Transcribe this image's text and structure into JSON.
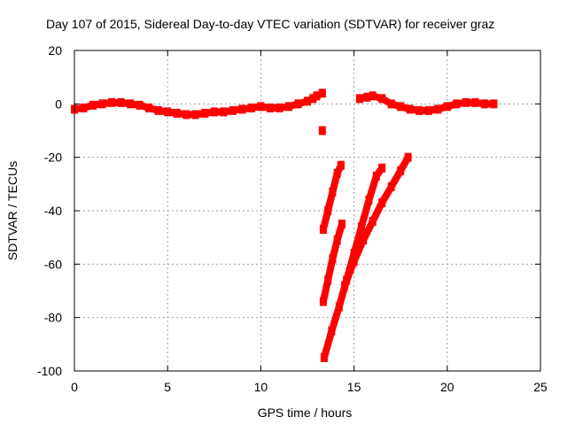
{
  "chart_data": {
    "type": "scatter",
    "title": "Day 107 of 2015, Sidereal Day-to-day VTEC variation (SDTVAR) for receiver graz",
    "xlabel": "GPS time / hours",
    "ylabel": "SDTVAR / TECUs",
    "xlim": [
      0,
      25
    ],
    "ylim": [
      -100,
      20
    ],
    "xticks": [
      0,
      5,
      10,
      15,
      20,
      25
    ],
    "yticks": [
      -100,
      -80,
      -60,
      -40,
      -20,
      0,
      20
    ],
    "grid": true,
    "marker_color": "#ff0000",
    "series": [
      {
        "name": "main-trace-1",
        "points": [
          [
            0.0,
            -2
          ],
          [
            0.5,
            -1.5
          ],
          [
            1.0,
            -0.5
          ],
          [
            1.5,
            0
          ],
          [
            2.0,
            0.5
          ],
          [
            2.5,
            0.5
          ],
          [
            3.0,
            0
          ],
          [
            3.5,
            -0.5
          ],
          [
            4.0,
            -1.5
          ],
          [
            4.5,
            -2.5
          ],
          [
            5.0,
            -3
          ],
          [
            5.5,
            -3.5
          ],
          [
            6.0,
            -4
          ],
          [
            6.5,
            -4
          ],
          [
            7.0,
            -3.5
          ],
          [
            7.5,
            -3
          ],
          [
            8.0,
            -3
          ],
          [
            8.5,
            -2.5
          ],
          [
            9.0,
            -2
          ],
          [
            9.5,
            -1.5
          ],
          [
            10.0,
            -1
          ],
          [
            10.5,
            -1.5
          ],
          [
            11.0,
            -1.5
          ],
          [
            11.5,
            -1
          ],
          [
            12.0,
            0
          ],
          [
            12.5,
            1
          ],
          [
            12.8,
            2
          ],
          [
            13.0,
            3
          ],
          [
            13.3,
            4
          ]
        ]
      },
      {
        "name": "main-trace-2",
        "points": [
          [
            15.3,
            2
          ],
          [
            15.7,
            2.5
          ],
          [
            16.0,
            3
          ],
          [
            16.5,
            2
          ],
          [
            17.0,
            0
          ],
          [
            17.5,
            -1
          ],
          [
            18.0,
            -2
          ],
          [
            18.5,
            -2.5
          ],
          [
            19.0,
            -2.5
          ],
          [
            19.5,
            -2
          ],
          [
            20.0,
            -1
          ],
          [
            20.5,
            0
          ],
          [
            21.0,
            0.5
          ],
          [
            21.5,
            0.5
          ],
          [
            22.0,
            0
          ],
          [
            22.5,
            0
          ]
        ]
      },
      {
        "name": "dip-point",
        "points": [
          [
            13.3,
            -10
          ]
        ]
      },
      {
        "name": "steep-line-1",
        "points": [
          [
            13.35,
            -47
          ],
          [
            13.6,
            -40
          ],
          [
            13.85,
            -33
          ],
          [
            14.1,
            -26
          ],
          [
            14.3,
            -23
          ]
        ]
      },
      {
        "name": "steep-line-2",
        "points": [
          [
            13.35,
            -74
          ],
          [
            13.6,
            -66
          ],
          [
            13.85,
            -58
          ],
          [
            14.1,
            -51
          ],
          [
            14.35,
            -45
          ]
        ]
      },
      {
        "name": "steep-line-3",
        "points": [
          [
            13.4,
            -95
          ],
          [
            13.8,
            -85
          ],
          [
            14.2,
            -76
          ],
          [
            14.6,
            -66
          ],
          [
            15.0,
            -56
          ],
          [
            15.4,
            -46
          ],
          [
            15.8,
            -36
          ],
          [
            16.2,
            -27
          ],
          [
            16.5,
            -24
          ]
        ]
      },
      {
        "name": "steep-line-4",
        "points": [
          [
            14.5,
            -68
          ],
          [
            15.0,
            -59
          ],
          [
            15.5,
            -51
          ],
          [
            16.0,
            -44
          ],
          [
            16.5,
            -37
          ],
          [
            17.0,
            -31
          ],
          [
            17.5,
            -25
          ],
          [
            17.9,
            -20
          ]
        ]
      }
    ]
  }
}
